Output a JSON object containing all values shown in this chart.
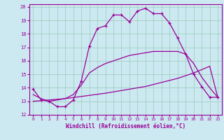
{
  "xlabel": "Windchill (Refroidissement éolien,°C)",
  "background_color": "#cce8f0",
  "grid_color": "#99ccbb",
  "line_color": "#990099",
  "xlim": [
    -0.5,
    23.5
  ],
  "ylim": [
    12,
    20.2
  ],
  "xticks": [
    0,
    1,
    2,
    3,
    4,
    5,
    6,
    7,
    8,
    9,
    10,
    11,
    12,
    13,
    14,
    15,
    16,
    17,
    18,
    19,
    20,
    21,
    22,
    23
  ],
  "yticks": [
    12,
    13,
    14,
    15,
    16,
    17,
    18,
    19,
    20
  ],
  "series1_x": [
    0,
    1,
    2,
    3,
    4,
    5,
    6,
    7,
    8,
    9,
    10,
    11,
    12,
    13,
    14,
    15,
    16,
    17,
    18,
    19,
    20,
    21,
    22,
    23
  ],
  "series1_y": [
    13.9,
    13.1,
    13.0,
    12.6,
    12.6,
    13.1,
    14.5,
    17.1,
    18.4,
    18.6,
    19.4,
    19.4,
    18.9,
    19.7,
    19.9,
    19.5,
    19.5,
    18.8,
    17.7,
    16.5,
    15.0,
    14.1,
    13.3,
    13.3
  ],
  "series2_x": [
    0,
    1,
    2,
    3,
    4,
    5,
    6,
    7,
    8,
    9,
    10,
    11,
    12,
    13,
    14,
    15,
    16,
    17,
    18,
    19,
    20,
    21,
    22,
    23
  ],
  "series2_y": [
    13.0,
    13.05,
    13.1,
    13.15,
    13.2,
    13.28,
    13.36,
    13.44,
    13.52,
    13.6,
    13.7,
    13.8,
    13.9,
    14.0,
    14.1,
    14.25,
    14.4,
    14.55,
    14.7,
    14.9,
    15.1,
    15.35,
    15.6,
    13.3
  ],
  "series3_x": [
    0,
    1,
    2,
    3,
    4,
    5,
    6,
    7,
    8,
    9,
    10,
    11,
    12,
    13,
    14,
    15,
    16,
    17,
    18,
    19,
    20,
    21,
    22,
    23
  ],
  "series3_y": [
    13.5,
    13.2,
    13.0,
    13.1,
    13.2,
    13.5,
    14.2,
    15.1,
    15.5,
    15.8,
    16.0,
    16.2,
    16.4,
    16.5,
    16.6,
    16.7,
    16.7,
    16.7,
    16.7,
    16.5,
    15.8,
    14.8,
    14.0,
    13.3
  ]
}
